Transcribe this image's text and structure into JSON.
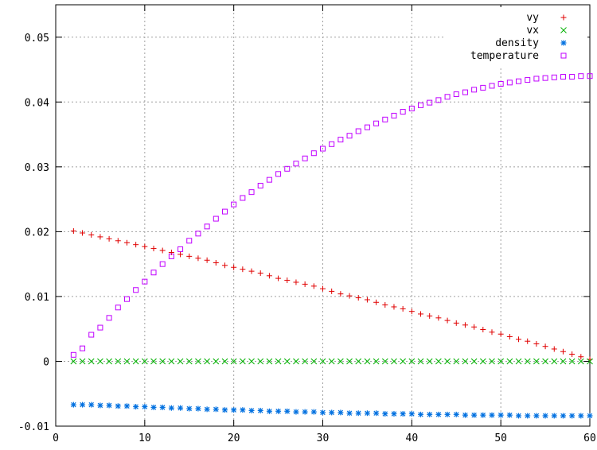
{
  "chart_data": {
    "type": "scatter",
    "title": "",
    "xlabel": "",
    "ylabel": "",
    "xlim": [
      0,
      60
    ],
    "ylim": [
      -0.01,
      0.055
    ],
    "xticks": [
      0,
      10,
      20,
      30,
      40,
      50,
      60
    ],
    "yticks": [
      -0.01,
      0,
      0.01,
      0.02,
      0.03,
      0.04,
      0.05
    ],
    "xtick_labels": [
      "0",
      "10",
      "20",
      "30",
      "40",
      "50",
      "60"
    ],
    "ytick_labels": [
      "-0.01",
      "0",
      "0.01",
      "0.02",
      "0.03",
      "0.04",
      "0.05"
    ],
    "grid": true,
    "legend_position": "top-right",
    "x": [
      2,
      3,
      4,
      5,
      6,
      7,
      8,
      9,
      10,
      11,
      12,
      13,
      14,
      15,
      16,
      17,
      18,
      19,
      20,
      21,
      22,
      23,
      24,
      25,
      26,
      27,
      28,
      29,
      30,
      31,
      32,
      33,
      34,
      35,
      36,
      37,
      38,
      39,
      40,
      41,
      42,
      43,
      44,
      45,
      46,
      47,
      48,
      49,
      50,
      51,
      52,
      53,
      54,
      55,
      56,
      57,
      58,
      59,
      60
    ],
    "series": [
      {
        "name": "vy",
        "marker": "plus",
        "color": "#e00000",
        "values": [
          0.0201,
          0.0198,
          0.0195,
          0.0192,
          0.0189,
          0.0186,
          0.0183,
          0.018,
          0.0177,
          0.0174,
          0.0171,
          0.0168,
          0.0165,
          0.0162,
          0.0159,
          0.0156,
          0.0152,
          0.0148,
          0.0145,
          0.0142,
          0.0139,
          0.0136,
          0.0132,
          0.0128,
          0.0125,
          0.0122,
          0.0119,
          0.0116,
          0.0112,
          0.0108,
          0.0104,
          0.0101,
          0.0098,
          0.0095,
          0.0091,
          0.0087,
          0.0084,
          0.0081,
          0.0077,
          0.0073,
          0.007,
          0.0067,
          0.0063,
          0.0059,
          0.0056,
          0.0053,
          0.0049,
          0.0045,
          0.0042,
          0.0038,
          0.0034,
          0.0031,
          0.0027,
          0.0023,
          0.0019,
          0.0015,
          0.0011,
          0.0007,
          0.0003
        ]
      },
      {
        "name": "vx",
        "marker": "cross",
        "color": "#00b000",
        "values": [
          0,
          0,
          0,
          0,
          0,
          0,
          0,
          0,
          0,
          0,
          0,
          0,
          0,
          0,
          0,
          0,
          0,
          0,
          0,
          0,
          0,
          0,
          0,
          0,
          0,
          0,
          0,
          0,
          0,
          0,
          0,
          0,
          0,
          0,
          0,
          0,
          0,
          0,
          0,
          0,
          0,
          0,
          0,
          0,
          0,
          0,
          0,
          0,
          0,
          0,
          0,
          0,
          0,
          0,
          0,
          0,
          0,
          0,
          0
        ]
      },
      {
        "name": "density",
        "marker": "star",
        "color": "#0070e0",
        "values": [
          -0.0067,
          -0.0067,
          -0.0067,
          -0.0068,
          -0.0068,
          -0.0069,
          -0.0069,
          -0.007,
          -0.007,
          -0.0071,
          -0.0071,
          -0.0072,
          -0.0072,
          -0.0073,
          -0.0073,
          -0.0074,
          -0.0074,
          -0.0075,
          -0.0075,
          -0.0075,
          -0.0076,
          -0.0076,
          -0.0077,
          -0.0077,
          -0.0077,
          -0.0078,
          -0.0078,
          -0.0078,
          -0.0079,
          -0.0079,
          -0.0079,
          -0.008,
          -0.008,
          -0.008,
          -0.008,
          -0.0081,
          -0.0081,
          -0.0081,
          -0.0081,
          -0.0082,
          -0.0082,
          -0.0082,
          -0.0082,
          -0.0082,
          -0.0083,
          -0.0083,
          -0.0083,
          -0.0083,
          -0.0083,
          -0.0083,
          -0.0084,
          -0.0084,
          -0.0084,
          -0.0084,
          -0.0084,
          -0.0084,
          -0.0084,
          -0.0084,
          -0.0084
        ]
      },
      {
        "name": "temperature",
        "marker": "square",
        "color": "#c000ff",
        "values": [
          0.001,
          0.002,
          0.0041,
          0.0052,
          0.0067,
          0.0083,
          0.0096,
          0.011,
          0.0123,
          0.0137,
          0.015,
          0.0162,
          0.0173,
          0.0186,
          0.0197,
          0.0208,
          0.022,
          0.0231,
          0.0242,
          0.0252,
          0.0261,
          0.0271,
          0.028,
          0.0289,
          0.0297,
          0.0305,
          0.0313,
          0.0321,
          0.0328,
          0.0335,
          0.0342,
          0.0348,
          0.0355,
          0.0361,
          0.0367,
          0.0373,
          0.0379,
          0.0385,
          0.039,
          0.0395,
          0.0399,
          0.0403,
          0.0408,
          0.0412,
          0.0415,
          0.0419,
          0.0422,
          0.0425,
          0.0428,
          0.043,
          0.0432,
          0.0434,
          0.0436,
          0.0437,
          0.0438,
          0.0439,
          0.0439,
          0.044,
          0.044
        ]
      }
    ]
  }
}
